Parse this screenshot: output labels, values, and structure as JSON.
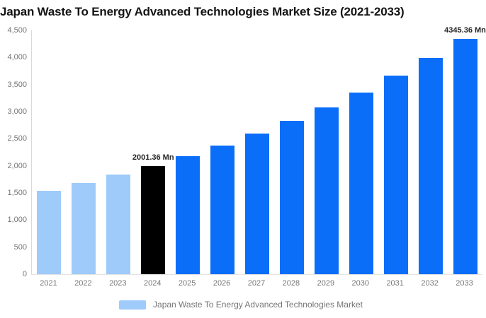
{
  "title": "Japan Waste To Energy Advanced Technologies Market Size (2021-2033)",
  "y_axis": {
    "ticks": [
      "0",
      "500",
      "1,000",
      "1,500",
      "2,000",
      "2,500",
      "3,000",
      "3,500",
      "4,000",
      "4,500"
    ]
  },
  "legend": {
    "label": "Japan Waste To Energy Advanced Technologies Market",
    "swatch_color": "#9ECBF9"
  },
  "colors": {
    "historical_bar": "#9ECBF9",
    "highlight_bar": "#000000",
    "forecast_bar": "#0B6EF9",
    "axis_text": "#757575",
    "bar_label_text": "#262626",
    "title_text": "#151515"
  },
  "chart_data": {
    "type": "bar",
    "title": "Japan Waste To Energy Advanced Technologies Market Size (2021-2033)",
    "categories": [
      "2021",
      "2022",
      "2023",
      "2024",
      "2025",
      "2026",
      "2027",
      "2028",
      "2029",
      "2030",
      "2031",
      "2032",
      "2033"
    ],
    "values": [
      1545,
      1685,
      1836,
      2001.36,
      2181,
      2378,
      2592,
      2825,
      3079,
      3356,
      3659,
      3988,
      4345.36
    ],
    "bar_colors": [
      "#9ECBF9",
      "#9ECBF9",
      "#9ECBF9",
      "#000000",
      "#0B6EF9",
      "#0B6EF9",
      "#0B6EF9",
      "#0B6EF9",
      "#0B6EF9",
      "#0B6EF9",
      "#0B6EF9",
      "#0B6EF9",
      "#0B6EF9"
    ],
    "data_labels": [
      {
        "category": "2024",
        "text": "2001.36 Mn"
      },
      {
        "category": "2033",
        "text": "4345.36 Mn"
      }
    ],
    "xlabel": "",
    "ylabel": "",
    "ylim": [
      0,
      4500
    ],
    "ytick_interval": 500,
    "grid": false,
    "legend_position": "bottom"
  }
}
